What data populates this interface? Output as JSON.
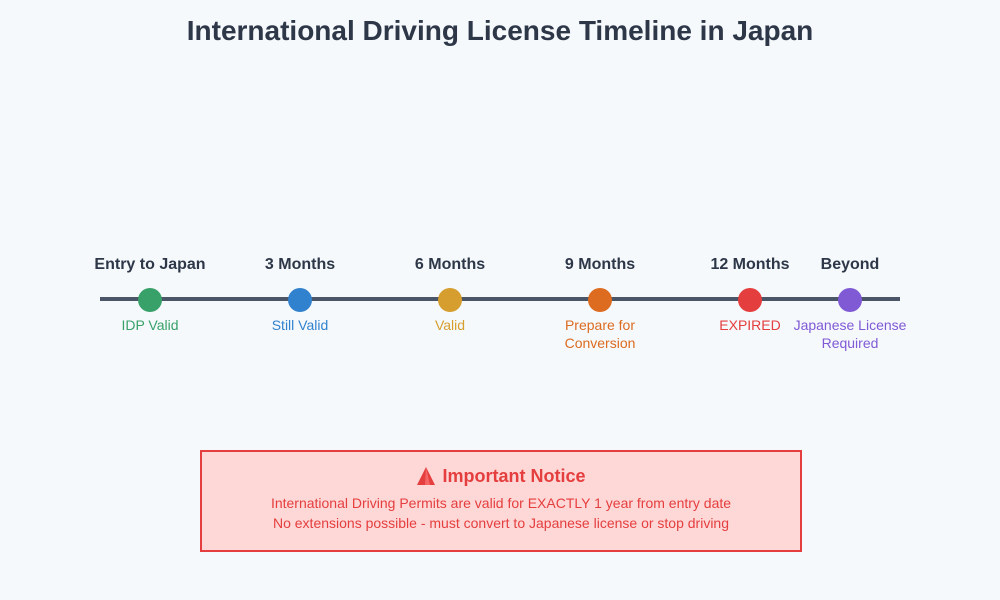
{
  "title": "International Driving License Timeline in Japan",
  "milestones": [
    {
      "label": "Entry to Japan",
      "status": "IDP Valid",
      "color": "#38a169"
    },
    {
      "label": "3 Months",
      "status": "Still Valid",
      "color": "#3182ce"
    },
    {
      "label": "6 Months",
      "status": "Valid",
      "color": "#d69e2e"
    },
    {
      "label": "9 Months",
      "status": "Prepare for\nConversion",
      "color": "#dd6b20"
    },
    {
      "label": "12 Months",
      "status": "EXPIRED",
      "color": "#e53e3e"
    },
    {
      "label": "Beyond",
      "status": "Japanese License\nRequired",
      "color": "#805ad5"
    }
  ],
  "notice": {
    "icon": "warning-triangle-icon",
    "title": "Important Notice",
    "line1": "International Driving Permits are valid for EXACTLY 1 year from entry date",
    "line2": "No extensions possible - must convert to Japanese license or stop driving",
    "color": "#e53e3e",
    "background": "#fed7d7"
  }
}
